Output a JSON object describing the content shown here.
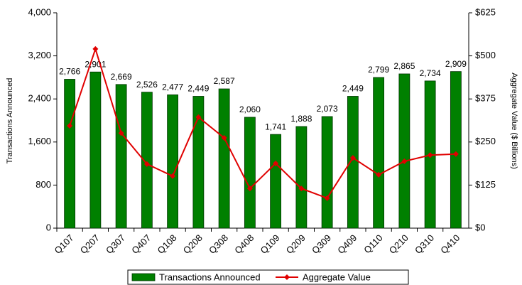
{
  "chart_data": {
    "type": "bar_line",
    "y_label": "Transactions Announced",
    "y2_label": "Aggregate Value ($ Billions)",
    "categories": [
      "Q107",
      "Q207",
      "Q307",
      "Q407",
      "Q108",
      "Q208",
      "Q308",
      "Q408",
      "Q109",
      "Q209",
      "Q309",
      "Q409",
      "Q110",
      "Q210",
      "Q310",
      "Q410"
    ],
    "series": [
      {
        "name": "Transactions Announced",
        "color": "#008000",
        "type": "bar",
        "values": [
          2766,
          2901,
          2669,
          2526,
          2477,
          2449,
          2587,
          2060,
          1741,
          1888,
          2073,
          2449,
          2799,
          2865,
          2734,
          2909
        ],
        "value_labels": [
          "2,766",
          "2,901",
          "2,669",
          "2,526",
          "2,477",
          "2,449",
          "2,587",
          "2,060",
          "1,741",
          "1,888",
          "2,073",
          "2,449",
          "2,799",
          "2,865",
          "2,734",
          "2,909"
        ]
      },
      {
        "name": "Aggregate Value",
        "color": "#e00000",
        "type": "line",
        "axis": "y2",
        "values": [
          297,
          520,
          276,
          186,
          151,
          322,
          262,
          115,
          188,
          115,
          87,
          204,
          155,
          194,
          212,
          215
        ]
      }
    ],
    "ylim": [
      0,
      4000
    ],
    "yticks": [
      0,
      800,
      {
        "value": 1600,
        "label": "1,600"
      },
      {
        "value": 2400,
        "label": "2,400"
      },
      {
        "value": 3200,
        "label": "3,200"
      },
      {
        "value": 4000,
        "label": "4,000"
      }
    ],
    "y2lim": [
      0,
      625
    ],
    "y2ticks": [
      {
        "value": 0,
        "label": "$0"
      },
      {
        "value": 125,
        "label": "$125"
      },
      {
        "value": 250,
        "label": "$250"
      },
      {
        "value": 375,
        "label": "$375"
      },
      {
        "value": 500,
        "label": "$500"
      },
      {
        "value": 625,
        "label": "$625"
      }
    ],
    "legend": "bottom"
  }
}
